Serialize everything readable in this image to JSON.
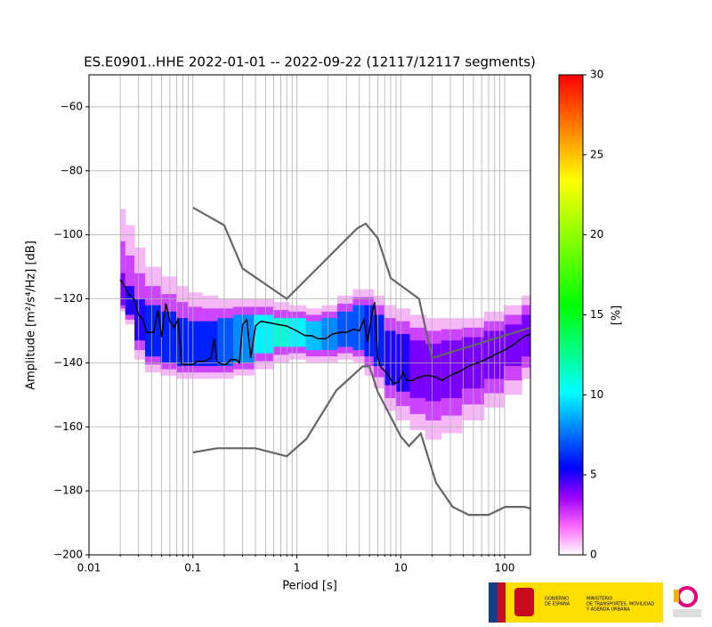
{
  "chart_data": {
    "type": "ppsd",
    "title": "ES.E0901..HHE   2022-01-01 -- 2022-09-22  (12117/12117 segments)",
    "x_label": "Period [s]",
    "y_label": "Amplitude [m²/s⁴/Hz] [dB]",
    "log_x": true,
    "grid": true,
    "xlim": [
      0.01,
      177
    ],
    "xticks": [
      0.01,
      0.1,
      1,
      10,
      100
    ],
    "xminorticks": [
      0.02,
      0.03,
      0.04,
      0.05,
      0.06,
      0.07,
      0.08,
      0.09,
      0.2,
      0.3,
      0.4,
      0.5,
      0.6,
      0.7,
      0.8,
      0.9,
      2,
      3,
      4,
      5,
      6,
      7,
      8,
      9,
      20,
      30,
      40,
      50,
      60,
      70,
      80,
      90
    ],
    "ylim": [
      -200,
      -50
    ],
    "yticks": [
      {
        "value": -200,
        "label": "−200"
      },
      {
        "value": -180,
        "label": "−180"
      },
      {
        "value": -160,
        "label": "−160"
      },
      {
        "value": -140,
        "label": "−140"
      },
      {
        "value": -120,
        "label": "−120"
      },
      {
        "value": -100,
        "label": "−100"
      },
      {
        "value": -80,
        "label": "−80"
      },
      {
        "value": -60,
        "label": "−60"
      }
    ],
    "density": {
      "periods": [
        0.02,
        0.025,
        0.03,
        0.04,
        0.06,
        0.08,
        0.1,
        0.15,
        0.2,
        0.3,
        0.5,
        0.7,
        1,
        1.5,
        2,
        3,
        4,
        5,
        6,
        8,
        10,
        15,
        20,
        30,
        50,
        80,
        120,
        177
      ],
      "upper": [
        -92,
        -97,
        -104,
        -110,
        -113,
        -116,
        -118,
        -119,
        -120,
        -120,
        -120,
        -121,
        -122,
        -123,
        -122,
        -119,
        -117,
        -117,
        -119,
        -122,
        -123,
        -125,
        -126,
        -126,
        -126,
        -124,
        -122,
        -119
      ],
      "lower": [
        -124,
        -128,
        -139,
        -143,
        -144,
        -145,
        -145,
        -145,
        -145,
        -144,
        -142,
        -140,
        -139,
        -140,
        -140,
        -139,
        -140,
        -144,
        -148,
        -155,
        -158,
        -161,
        -164,
        -162,
        -158,
        -154,
        -150,
        -145
      ],
      "core_upper": [
        -112,
        -116,
        -120,
        -122,
        -124,
        -126,
        -127,
        -127,
        -126,
        -125,
        -125,
        -126,
        -126,
        -127,
        -126,
        -124,
        -122,
        -122,
        -125,
        -130,
        -131,
        -133,
        -134,
        -133,
        -132,
        -130,
        -128,
        -125
      ],
      "core_lower": [
        -122,
        -125,
        -133,
        -138,
        -140,
        -141,
        -141,
        -141,
        -141,
        -140,
        -137,
        -135,
        -135,
        -136,
        -136,
        -135,
        -136,
        -138,
        -141,
        -147,
        -149,
        -151,
        -152,
        -151,
        -148,
        -145,
        -141,
        -138
      ],
      "peak": [
        4,
        5,
        5,
        6,
        6,
        6,
        6,
        6,
        7,
        8,
        10,
        11,
        10,
        9,
        8,
        7,
        7,
        6,
        6,
        5,
        5,
        4,
        4,
        4,
        4,
        4,
        4,
        4
      ]
    },
    "series": [
      {
        "color": "#000000",
        "x": [
          0.02,
          0.022,
          0.024,
          0.027,
          0.03,
          0.033,
          0.036,
          0.042,
          0.046,
          0.05,
          0.055,
          0.06,
          0.066,
          0.072,
          0.078,
          0.09,
          0.1,
          0.11,
          0.13,
          0.15,
          0.16,
          0.17,
          0.19,
          0.21,
          0.23,
          0.26,
          0.28,
          0.3,
          0.33,
          0.36,
          0.4,
          0.45,
          0.55,
          0.65,
          0.8,
          1,
          1.2,
          1.4,
          1.6,
          1.9,
          2.2,
          2.6,
          3,
          3.5,
          4,
          4.4,
          4.8,
          5.2,
          5.6,
          6,
          6.5,
          7.5,
          8.5,
          9.5,
          10.5,
          11.5,
          13,
          15,
          17,
          19,
          22,
          25,
          28,
          32,
          38,
          45,
          55,
          65,
          80,
          100,
          120,
          150,
          177
        ],
        "values": [
          -114,
          -116,
          -118.5,
          -120,
          -125,
          -126.5,
          -130.5,
          -130.5,
          -123.5,
          -132,
          -121.5,
          -127,
          -129,
          -126.5,
          -140.5,
          -140.5,
          -140.5,
          -139.5,
          -139.5,
          -138.5,
          -132.5,
          -139.5,
          -140.5,
          -140.5,
          -139,
          -139,
          -140,
          -128,
          -126.5,
          -138.5,
          -128.5,
          -127,
          -127.5,
          -128,
          -128.5,
          -130,
          -131.5,
          -131.5,
          -132.5,
          -132.5,
          -131,
          -130.5,
          -130.5,
          -129.5,
          -130,
          -126.5,
          -133.5,
          -126,
          -121,
          -138.5,
          -141.5,
          -143.5,
          -146.5,
          -146,
          -143,
          -145.5,
          -145.5,
          -144.5,
          -144,
          -144,
          -144.5,
          -145.5,
          -144.5,
          -143.5,
          -142.5,
          -141,
          -140,
          -139,
          -137.5,
          -136,
          -134.5,
          -132,
          -131
        ]
      },
      {
        "color": "#666666",
        "x": [
          0.1,
          0.2,
          0.3,
          0.8,
          3.8,
          4.6,
          6,
          8,
          15,
          20,
          177
        ],
        "values": [
          -91.5,
          -97,
          -110.5,
          -120,
          -98,
          -96.5,
          -101,
          -113.5,
          -120,
          -138.5,
          -129
        ]
      },
      {
        "color": "#666666",
        "x": [
          0.1,
          0.17,
          0.4,
          0.8,
          1.24,
          2.4,
          4.3,
          5,
          6,
          10,
          12,
          15.6,
          21.9,
          31.6,
          45,
          70,
          101,
          154,
          177
        ],
        "values": [
          -168,
          -166.7,
          -166.7,
          -169.2,
          -163.7,
          -148.6,
          -141.1,
          -141.1,
          -149,
          -163,
          -166,
          -162.1,
          -177.5,
          -185,
          -187.5,
          -187.5,
          -185,
          -185,
          -185.5
        ]
      }
    ],
    "colorbar": {
      "label": "[%]",
      "lim": [
        0,
        30
      ],
      "ticks": [
        0,
        5,
        10,
        15,
        20,
        25,
        30
      ]
    }
  },
  "logos": {
    "gobierno": [
      "GOBIERNO",
      "DE ESPAÑA"
    ],
    "ministerio": [
      "MINISTERIO",
      "DE TRANSPORTES, MOVILIDAD",
      "Y AGENDA URBANA"
    ]
  }
}
